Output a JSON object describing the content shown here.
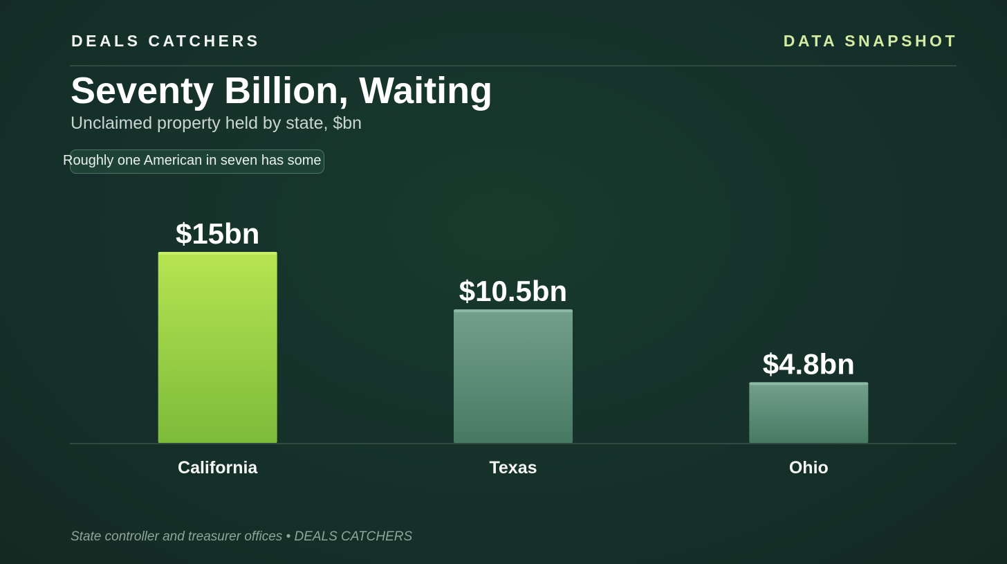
{
  "header": {
    "brand": "DEALS CATCHERS",
    "kicker": "DATA SNAPSHOT"
  },
  "title": "Seventy Billion, Waiting",
  "subtitle": "Unclaimed property held by state, $bn",
  "callout": "Roughly one American in seven has some",
  "footer": {
    "source": "State controller and treasurer offices • DEALS CATCHERS"
  },
  "colors": {
    "highlight_bar_top": "#b7e452",
    "highlight_bar_bottom": "#7cbb3a",
    "muted_bar_top": "#73a08d",
    "muted_bar_bottom": "#477962",
    "brand_accent": "#d4eba3"
  },
  "chart_data": {
    "type": "bar",
    "title": "Seventy Billion, Waiting",
    "subtitle": "Unclaimed property held by state, $bn",
    "categories": [
      "California",
      "Texas",
      "Ohio"
    ],
    "values": [
      15,
      10.5,
      4.8
    ],
    "data_labels": [
      "$15bn",
      "$10.5bn",
      "$4.8bn"
    ],
    "highlighted_category": "California",
    "unit": "$bn",
    "xlabel": "",
    "ylabel": "",
    "ylim": [
      0,
      15
    ],
    "grid": false,
    "legend": "none"
  }
}
